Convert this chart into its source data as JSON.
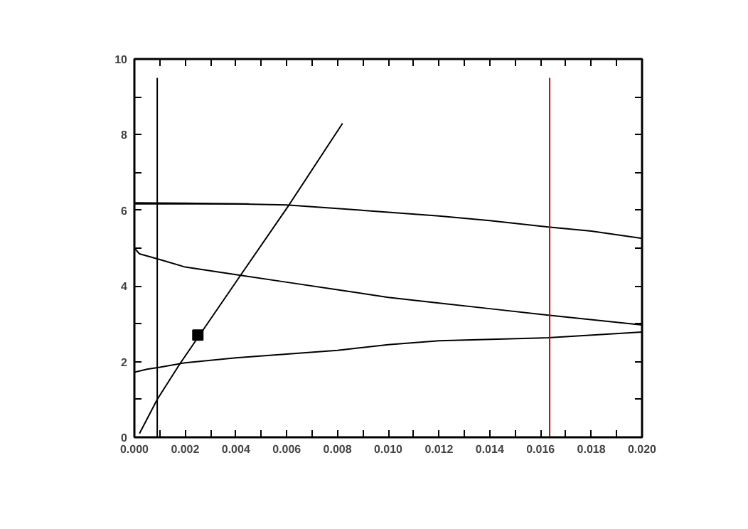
{
  "chart_data": {
    "type": "line",
    "xlim": [
      0,
      0.02
    ],
    "ylim": [
      0,
      10
    ],
    "xticks": [
      {
        "value": 0,
        "label": "0.000"
      },
      {
        "value": 0.001,
        "label": null
      },
      0.002,
      {
        "value": 0.003,
        "label": null
      },
      0.004,
      {
        "value": 0.005,
        "label": null
      },
      0.006,
      {
        "value": 0.007,
        "label": null
      },
      0.008,
      {
        "value": 0.009,
        "label": null
      },
      {
        "value": 0.01,
        "label": "0.010"
      },
      {
        "value": 0.011,
        "label": null
      },
      0.012,
      {
        "value": 0.013,
        "label": null
      },
      0.014,
      {
        "value": 0.015,
        "label": null
      },
      0.016,
      {
        "value": 0.017,
        "label": null
      },
      0.018,
      {
        "value": 0.019,
        "label": null
      },
      {
        "value": 0.02,
        "label": "0.020"
      }
    ],
    "yticks": [
      0,
      {
        "value": 1,
        "label": null
      },
      2,
      {
        "value": 3,
        "label": null
      },
      4,
      {
        "value": 5,
        "label": null
      },
      6,
      {
        "value": 7,
        "label": null
      },
      8,
      {
        "value": 9,
        "label": null
      },
      10
    ],
    "grid": false,
    "series": [
      {
        "color": "#000000",
        "x": [
          0.0002,
          0.0009,
          0.0018,
          0.0042,
          0.0061,
          0.0082
        ],
        "values": [
          0.1,
          1.0,
          1.95,
          4.3,
          6.15,
          8.3
        ]
      },
      {
        "color": "#000000",
        "x": [
          0,
          0.002,
          0.004,
          0.006,
          0.008,
          0.01,
          0.012,
          0.014,
          0.0163,
          0.018,
          0.02
        ],
        "values": [
          6.2,
          6.19,
          6.17,
          6.14,
          6.05,
          5.95,
          5.85,
          5.73,
          5.56,
          5.45,
          5.26
        ]
      },
      {
        "color": "#000000",
        "x": [
          0,
          0.0045
        ],
        "values": [
          6.17,
          6.17
        ]
      },
      {
        "color": "#000000",
        "x": [
          0,
          0.0002,
          0.001,
          0.002,
          0.004,
          0.006,
          0.008,
          0.01,
          0.012,
          0.014,
          0.0163,
          0.02
        ],
        "values": [
          5.0,
          4.85,
          4.7,
          4.5,
          4.3,
          4.1,
          3.9,
          3.7,
          3.55,
          3.4,
          3.23,
          2.97
        ]
      },
      {
        "color": "#000000",
        "x": [
          0,
          0.0005,
          0.001,
          0.002,
          0.004,
          0.006,
          0.008,
          0.01,
          0.012,
          0.0163,
          0.02
        ],
        "values": [
          1.72,
          1.8,
          1.85,
          1.97,
          2.1,
          2.2,
          2.3,
          2.45,
          2.55,
          2.63,
          2.78
        ]
      },
      {
        "color": "#000000",
        "x": [
          0.0009,
          0.0009
        ],
        "values": [
          0,
          9.5
        ]
      },
      {
        "color": "#cc0000",
        "x": [
          0.01636,
          0.01636
        ],
        "values": [
          0,
          9.5
        ]
      },
      {
        "type": "scatter",
        "marker": "square",
        "color": "#000000",
        "x": [
          0.0025
        ],
        "values": [
          2.7
        ]
      }
    ]
  }
}
